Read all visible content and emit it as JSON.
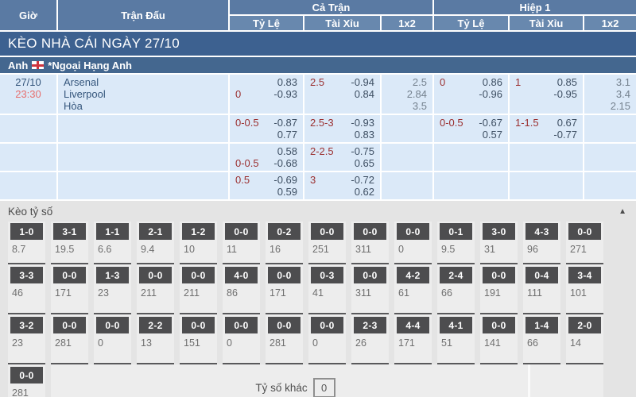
{
  "header": {
    "col_time": "Giờ",
    "col_match": "Trận Đấu",
    "group_full_time": "Cả Trận",
    "group_first_half": "Hiệp 1",
    "sub_handicap": "Tỷ Lệ",
    "sub_over_under": "Tài Xỉu",
    "sub_1x2": "1x2"
  },
  "banner": {
    "title": "KÈO NHÀ CÁI NGÀY 27/10"
  },
  "league": {
    "country": "Anh",
    "flag_icon": "england-flag",
    "name": "*Ngoại Hạng Anh"
  },
  "match": {
    "date": "27/10",
    "time": "23:30",
    "home": "Arsenal",
    "away": "Liverpool",
    "draw_label": "Hòa"
  },
  "odds_rows": [
    {
      "ft_handicap": [
        [
          "",
          "0.83"
        ],
        [
          "0",
          "-0.93"
        ]
      ],
      "ft_over_under": [
        [
          "2.5",
          "-0.94"
        ],
        [
          "",
          "0.84"
        ]
      ],
      "ft_1x2": [
        "2.5",
        "2.84",
        "3.5"
      ],
      "h1_handicap": [
        [
          "0",
          "0.86"
        ],
        [
          "",
          "-0.96"
        ]
      ],
      "h1_over_under": [
        [
          "1",
          "0.85"
        ],
        [
          "",
          "-0.95"
        ]
      ],
      "h1_1x2": [
        "3.1",
        "3.4",
        "2.15"
      ]
    },
    {
      "ft_handicap": [
        [
          "0-0.5",
          "-0.87"
        ],
        [
          "",
          "0.77"
        ]
      ],
      "ft_over_under": [
        [
          "2.5-3",
          "-0.93"
        ],
        [
          "",
          "0.83"
        ]
      ],
      "ft_1x2": [],
      "h1_handicap": [
        [
          "0-0.5",
          "-0.67"
        ],
        [
          "",
          "0.57"
        ]
      ],
      "h1_over_under": [
        [
          "1-1.5",
          "0.67"
        ],
        [
          "",
          "-0.77"
        ]
      ],
      "h1_1x2": []
    },
    {
      "ft_handicap": [
        [
          "",
          "0.58"
        ],
        [
          "0-0.5",
          "-0.68"
        ]
      ],
      "ft_over_under": [
        [
          "2-2.5",
          "-0.75"
        ],
        [
          "",
          "0.65"
        ]
      ],
      "ft_1x2": [],
      "h1_handicap": [],
      "h1_over_under": [],
      "h1_1x2": []
    },
    {
      "ft_handicap": [
        [
          "0.5",
          "-0.69"
        ],
        [
          "",
          "0.59"
        ]
      ],
      "ft_over_under": [
        [
          "3",
          "-0.72"
        ],
        [
          "",
          "0.62"
        ]
      ],
      "ft_1x2": [],
      "h1_handicap": [],
      "h1_over_under": [],
      "h1_1x2": []
    }
  ],
  "score_section": {
    "title": "Kèo tỷ số",
    "collapse_icon": "▲",
    "rows": [
      [
        [
          "1-0",
          "8.7"
        ],
        [
          "3-1",
          "19.5"
        ],
        [
          "1-1",
          "6.6"
        ],
        [
          "2-1",
          "9.4"
        ],
        [
          "1-2",
          "10"
        ],
        [
          "0-0",
          "11"
        ],
        [
          "0-2",
          "16"
        ],
        [
          "0-0",
          "251"
        ],
        [
          "0-0",
          "311"
        ],
        [
          "0-0",
          "0"
        ],
        [
          "0-1",
          "9.5"
        ],
        [
          "3-0",
          "31"
        ],
        [
          "4-3",
          "96"
        ],
        [
          "0-0",
          "271"
        ]
      ],
      [
        [
          "3-3",
          "46"
        ],
        [
          "0-0",
          "171"
        ],
        [
          "1-3",
          "23"
        ],
        [
          "0-0",
          "211"
        ],
        [
          "0-0",
          "211"
        ],
        [
          "4-0",
          "86"
        ],
        [
          "0-0",
          "171"
        ],
        [
          "0-3",
          "41"
        ],
        [
          "0-0",
          "311"
        ],
        [
          "4-2",
          "61"
        ],
        [
          "2-4",
          "66"
        ],
        [
          "0-0",
          "191"
        ],
        [
          "0-4",
          "111"
        ],
        [
          "3-4",
          "101"
        ]
      ],
      [
        [
          "3-2",
          "23"
        ],
        [
          "0-0",
          "281"
        ],
        [
          "0-0",
          "0"
        ],
        [
          "2-2",
          "13"
        ],
        [
          "0-0",
          "151"
        ],
        [
          "0-0",
          "0"
        ],
        [
          "0-0",
          "281"
        ],
        [
          "0-0",
          "0"
        ],
        [
          "2-3",
          "26"
        ],
        [
          "4-4",
          "171"
        ],
        [
          "4-1",
          "51"
        ],
        [
          "0-0",
          "141"
        ],
        [
          "1-4",
          "66"
        ],
        [
          "2-0",
          "14"
        ]
      ],
      [
        [
          "0-0",
          "281"
        ]
      ]
    ],
    "other": {
      "label": "Tỷ số khác",
      "value": "0"
    }
  },
  "colors": {
    "header_blue": "#5a7aa3",
    "subheader_blue": "#6888ae",
    "banner_navy": "#3d6190",
    "league_blue": "#44678f",
    "row_light_blue": "#dbe9f8",
    "handicap_red": "#9b3030",
    "time_red": "#e76f6e",
    "value_slate": "#3e4f63",
    "score_box_gray": "#4d4d4f",
    "section_gray": "#e4e4e4"
  }
}
